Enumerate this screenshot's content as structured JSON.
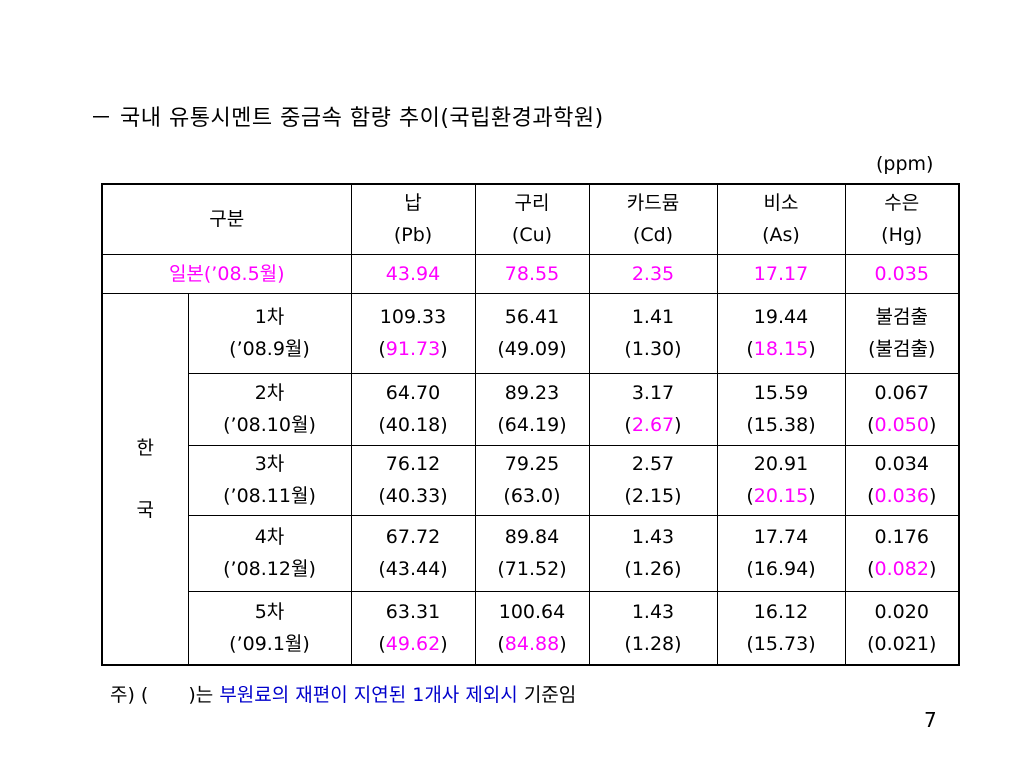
{
  "title": "－ 국내 유통시멘트 중금속 함량 추이(국립환경과학원)",
  "unit": "(ppm)",
  "table": {
    "header": {
      "category": "구분",
      "columns": [
        {
          "name": "납",
          "symbol": "(Pb)"
        },
        {
          "name": "구리",
          "symbol": "(Cu)"
        },
        {
          "name": "카드뮴",
          "symbol": "(Cd)"
        },
        {
          "name": "비소",
          "symbol": "(As)"
        },
        {
          "name": "수은",
          "symbol": "(Hg)"
        }
      ]
    },
    "japan": {
      "label": "일본(’08.5월)",
      "values": [
        "43.94",
        "78.55",
        "2.35",
        "17.17",
        "0.035"
      ]
    },
    "korea": {
      "label_top": "한",
      "label_bottom": "국",
      "rounds": [
        {
          "round": "1차",
          "date": "(’08.9월)",
          "cells": [
            {
              "main": "109.33",
              "sub": "91.73",
              "sub_highlight": true
            },
            {
              "main": "56.41",
              "sub": "49.09",
              "sub_highlight": false
            },
            {
              "main": "1.41",
              "sub": "1.30",
              "sub_highlight": false
            },
            {
              "main": "19.44",
              "sub": "18.15",
              "sub_highlight": true
            },
            {
              "main": "불검출",
              "sub": "불검출",
              "sub_highlight": false
            }
          ]
        },
        {
          "round": "2차",
          "date": "(’08.10월)",
          "cells": [
            {
              "main": "64.70",
              "sub": "40.18",
              "sub_highlight": false
            },
            {
              "main": "89.23",
              "sub": "64.19",
              "sub_highlight": false
            },
            {
              "main": "3.17",
              "sub": "2.67",
              "sub_highlight": true
            },
            {
              "main": "15.59",
              "sub": "15.38",
              "sub_highlight": false
            },
            {
              "main": "0.067",
              "sub": "0.050",
              "sub_highlight": true
            }
          ]
        },
        {
          "round": "3차",
          "date": "(’08.11월)",
          "cells": [
            {
              "main": "76.12",
              "sub": "40.33",
              "sub_highlight": false
            },
            {
              "main": "79.25",
              "sub": "63.0",
              "sub_highlight": false
            },
            {
              "main": "2.57",
              "sub": "2.15",
              "sub_highlight": false
            },
            {
              "main": "20.91",
              "sub": "20.15",
              "sub_highlight": true
            },
            {
              "main": "0.034",
              "sub": "0.036",
              "sub_highlight": true
            }
          ]
        },
        {
          "round": "4차",
          "date": "(’08.12월)",
          "cells": [
            {
              "main": "67.72",
              "sub": "43.44",
              "sub_highlight": false
            },
            {
              "main": "89.84",
              "sub": "71.52",
              "sub_highlight": false
            },
            {
              "main": "1.43",
              "sub": "1.26",
              "sub_highlight": false
            },
            {
              "main": "17.74",
              "sub": "16.94",
              "sub_highlight": false
            },
            {
              "main": "0.176",
              "sub": "0.082",
              "sub_highlight": true
            }
          ]
        },
        {
          "round": "5차",
          "date": "(’09.1월)",
          "cells": [
            {
              "main": "63.31",
              "sub": "49.62",
              "sub_highlight": true
            },
            {
              "main": "100.64",
              "sub": "84.88",
              "sub_highlight": true
            },
            {
              "main": "1.43",
              "sub": "1.28",
              "sub_highlight": false
            },
            {
              "main": "16.12",
              "sub": "15.73",
              "sub_highlight": false
            },
            {
              "main": "0.020",
              "sub": "0.021",
              "sub_highlight": false
            }
          ]
        }
      ]
    }
  },
  "footnote": {
    "prefix": "주) (",
    "suffix": ")는",
    "highlight": "부원료의 재편이 지연된 1개사 제외시",
    "end": "기준임"
  },
  "page_number": "7",
  "colors": {
    "highlight": "#ff00ff",
    "note_blue": "#0000cc",
    "text": "#000000"
  }
}
